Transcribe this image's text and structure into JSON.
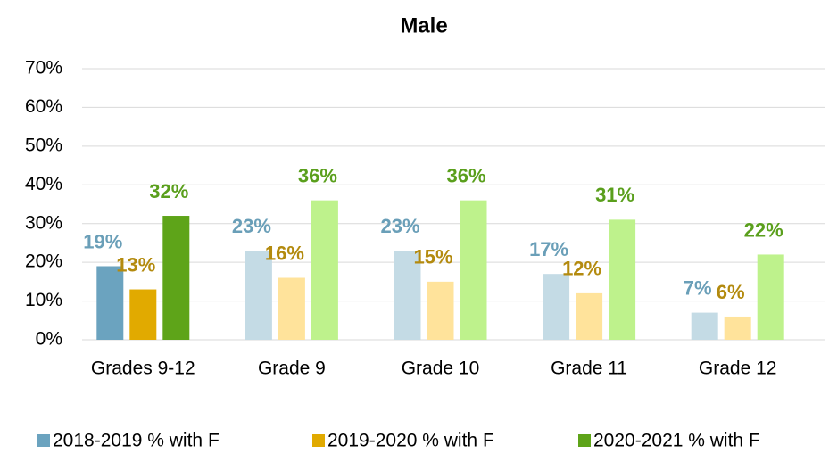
{
  "chart_data": {
    "type": "bar",
    "title": "Male",
    "categories": [
      "Grades 9-12",
      "Grade 9",
      "Grade 10",
      "Grade 11",
      "Grade 12"
    ],
    "series": [
      {
        "name": "2018-2019 % with F",
        "color": "#6ba3bf",
        "point_colors": [
          "#6ba3bf",
          "#c4dbe5",
          "#c4dbe5",
          "#c4dbe5",
          "#c4dbe5"
        ],
        "label_color": "#6a9fb8",
        "values": [
          19,
          23,
          23,
          17,
          7
        ],
        "value_labels": [
          "19%",
          "23%",
          "23%",
          "17%",
          "7%"
        ]
      },
      {
        "name": "2019-2020 % with F",
        "color": "#e1aa00",
        "point_colors": [
          "#e1aa00",
          "#ffe39b",
          "#ffe39b",
          "#ffe39b",
          "#ffe39b"
        ],
        "label_color": "#b38a0e",
        "values": [
          13,
          16,
          15,
          12,
          6
        ],
        "value_labels": [
          "13%",
          "16%",
          "15%",
          "12%",
          "6%"
        ]
      },
      {
        "name": "2020-2021 % with F",
        "color": "#5ea419",
        "point_colors": [
          "#5ea419",
          "#bef28c",
          "#bef28c",
          "#bef28c",
          "#bef28c"
        ],
        "label_color": "#5a9f1c",
        "values": [
          32,
          36,
          36,
          31,
          22
        ],
        "value_labels": [
          "32%",
          "36%",
          "36%",
          "31%",
          "22%"
        ]
      }
    ],
    "ylim": [
      0,
      70
    ],
    "yticks": [
      {
        "value": 0,
        "label": "0%"
      },
      {
        "value": 10,
        "label": "10%"
      },
      {
        "value": 20,
        "label": "20%"
      },
      {
        "value": 30,
        "label": "30%"
      },
      {
        "value": 40,
        "label": "40%"
      },
      {
        "value": 50,
        "label": "50%"
      },
      {
        "value": 60,
        "label": "60%"
      },
      {
        "value": 70,
        "label": "70%"
      }
    ],
    "grid": true,
    "legend": "bottom"
  }
}
